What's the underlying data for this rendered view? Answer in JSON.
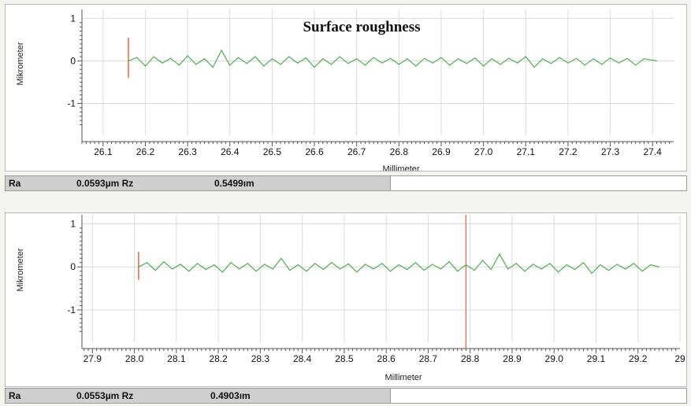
{
  "chart_data": [
    {
      "type": "line",
      "title": "Surface roughness",
      "xlabel": "Millimeter",
      "ylabel": "Mikrometer",
      "xlim": [
        26.05,
        27.45
      ],
      "ylim": [
        -1.75,
        1.1
      ],
      "xticks": [
        "26.1",
        "26.2",
        "26.3",
        "26.4",
        "26.5",
        "26.6",
        "26.7",
        "26.8",
        "26.9",
        "27.0",
        "27.1",
        "27.2",
        "27.3",
        "27.4"
      ],
      "yticks": [
        "1",
        "0",
        "-1"
      ],
      "grid": true,
      "marker_x": 26.16,
      "marker_range": [
        -0.4,
        0.55
      ],
      "series": [
        {
          "color": "#4caf50",
          "x": [
            26.16,
            26.18,
            26.2,
            26.22,
            26.24,
            26.26,
            26.28,
            26.3,
            26.32,
            26.34,
            26.36,
            26.38,
            26.4,
            26.42,
            26.44,
            26.46,
            26.48,
            26.5,
            26.52,
            26.54,
            26.56,
            26.58,
            26.6,
            26.62,
            26.64,
            26.66,
            26.68,
            26.7,
            26.72,
            26.74,
            26.76,
            26.78,
            26.8,
            26.82,
            26.84,
            26.86,
            26.88,
            26.9,
            26.92,
            26.94,
            26.96,
            26.98,
            27.0,
            27.02,
            27.04,
            27.06,
            27.08,
            27.1,
            27.12,
            27.14,
            27.16,
            27.18,
            27.2,
            27.22,
            27.24,
            27.26,
            27.28,
            27.3,
            27.32,
            27.34,
            27.36,
            27.38,
            27.41
          ],
          "y": [
            0,
            0.08,
            -0.12,
            0.1,
            -0.05,
            0.06,
            -0.1,
            0.12,
            -0.08,
            0.05,
            -0.15,
            0.25,
            -0.1,
            0.08,
            -0.06,
            0.1,
            -0.12,
            0.05,
            -0.08,
            0.1,
            -0.05,
            0.07,
            -0.15,
            0.05,
            -0.08,
            0.1,
            -0.06,
            0.05,
            -0.1,
            0.08,
            -0.05,
            0.06,
            -0.08,
            0.05,
            -0.12,
            0.06,
            -0.05,
            0.08,
            -0.1,
            0.05,
            -0.06,
            0.07,
            -0.12,
            0.05,
            -0.08,
            0.06,
            -0.05,
            0.1,
            -0.15,
            0.05,
            -0.06,
            0.08,
            -0.05,
            0.06,
            -0.1,
            0.05,
            -0.08,
            0.07,
            -0.05,
            0.06,
            -0.1,
            0.05,
            0
          ]
        }
      ]
    },
    {
      "type": "line",
      "title": "",
      "xlabel": "Millimeter",
      "ylabel": "Mikrometer",
      "xlim": [
        27.875,
        29.3
      ],
      "ylim": [
        -1.75,
        1.1
      ],
      "xticks": [
        "27.9",
        "28.0",
        "28.1",
        "28.2",
        "28.3",
        "28.4",
        "28.5",
        "28.6",
        "28.7",
        "28.8",
        "28.9",
        "29.0",
        "29.1",
        "29.2",
        "29"
      ],
      "yticks": [
        "1",
        "0",
        "-1"
      ],
      "grid": true,
      "marker_x": 28.01,
      "marker_range": [
        -0.3,
        0.35
      ],
      "cursor_x": 28.79,
      "series": [
        {
          "color": "#4caf50",
          "x": [
            28.01,
            28.03,
            28.05,
            28.07,
            28.09,
            28.11,
            28.13,
            28.15,
            28.17,
            28.19,
            28.21,
            28.23,
            28.25,
            28.27,
            28.29,
            28.31,
            28.33,
            28.35,
            28.37,
            28.39,
            28.41,
            28.43,
            28.45,
            28.47,
            28.49,
            28.51,
            28.53,
            28.55,
            28.57,
            28.59,
            28.61,
            28.63,
            28.65,
            28.67,
            28.69,
            28.71,
            28.73,
            28.75,
            28.77,
            28.79,
            28.81,
            28.83,
            28.85,
            28.87,
            28.89,
            28.91,
            28.93,
            28.95,
            28.97,
            28.99,
            29.01,
            29.03,
            29.05,
            29.07,
            29.09,
            29.11,
            29.13,
            29.15,
            29.17,
            29.19,
            29.21,
            29.23,
            29.25
          ],
          "y": [
            0,
            0.1,
            -0.08,
            0.12,
            -0.05,
            0.06,
            -0.1,
            0.08,
            -0.06,
            0.05,
            -0.12,
            0.1,
            -0.05,
            0.08,
            -0.1,
            0.06,
            -0.05,
            0.2,
            -0.08,
            0.05,
            -0.1,
            0.08,
            -0.06,
            0.1,
            -0.05,
            0.07,
            -0.12,
            0.06,
            -0.05,
            0.08,
            -0.1,
            0.05,
            -0.06,
            0.1,
            -0.08,
            0.06,
            -0.05,
            0.12,
            -0.1,
            0.05,
            -0.08,
            0.15,
            -0.06,
            0.3,
            -0.05,
            0.08,
            -0.1,
            0.06,
            -0.05,
            0.08,
            -0.12,
            0.05,
            -0.06,
            0.1,
            -0.15,
            0.05,
            -0.08,
            0.06,
            -0.05,
            0.08,
            -0.1,
            0.05,
            0
          ]
        }
      ]
    }
  ],
  "panels": [
    {
      "ra_label": "Ra",
      "ra_value": "0.0593µm Rz",
      "rz_value": "0.5499ım"
    },
    {
      "ra_label": "Ra",
      "ra_value": "0.0553µm Rz",
      "rz_value": "0.4903ım"
    }
  ],
  "colors": {
    "signal": "#4caf50",
    "marker": "#e8663c",
    "grid": "#dcdcdc"
  }
}
